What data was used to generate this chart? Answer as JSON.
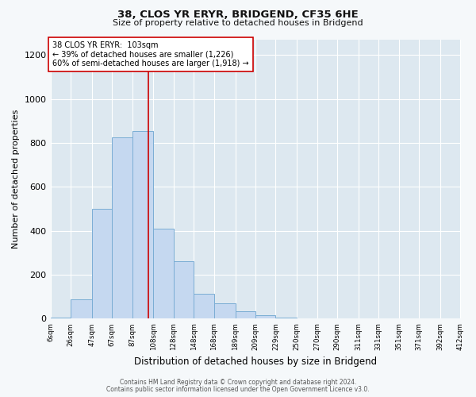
{
  "title": "38, CLOS YR ERYR, BRIDGEND, CF35 6HE",
  "subtitle": "Size of property relative to detached houses in Bridgend",
  "xlabel": "Distribution of detached houses by size in Bridgend",
  "ylabel": "Number of detached properties",
  "bar_color": "#c5d8f0",
  "bar_edge_color": "#7aadd4",
  "background_color": "#dde8f0",
  "plot_bg_color": "#dde8f0",
  "annotation_box_color": "#ffffff",
  "annotation_border_color": "#cc0000",
  "vline_color": "#cc0000",
  "vline_x": 103,
  "annotation_line1": "38 CLOS YR ERYR:  103sqm",
  "annotation_line2": "← 39% of detached houses are smaller (1,226)",
  "annotation_line3": "60% of semi-detached houses are larger (1,918) →",
  "footer1": "Contains HM Land Registry data © Crown copyright and database right 2024.",
  "footer2": "Contains public sector information licensed under the Open Government Licence v3.0.",
  "bin_edges": [
    6,
    26,
    47,
    67,
    87,
    108,
    128,
    148,
    168,
    189,
    209,
    229,
    250,
    270,
    290,
    311,
    331,
    351,
    371,
    392,
    412
  ],
  "bin_labels": [
    "6sqm",
    "26sqm",
    "47sqm",
    "67sqm",
    "87sqm",
    "108sqm",
    "128sqm",
    "148sqm",
    "168sqm",
    "189sqm",
    "209sqm",
    "229sqm",
    "250sqm",
    "270sqm",
    "290sqm",
    "311sqm",
    "331sqm",
    "351sqm",
    "371sqm",
    "392sqm",
    "412sqm"
  ],
  "counts": [
    5,
    90,
    500,
    825,
    855,
    410,
    260,
    115,
    70,
    35,
    15,
    5,
    2,
    1,
    0,
    0,
    0,
    0,
    0,
    2
  ],
  "ylim": [
    0,
    1270
  ],
  "yticks": [
    0,
    200,
    400,
    600,
    800,
    1000,
    1200
  ],
  "fig_bg_color": "#f5f8fa"
}
